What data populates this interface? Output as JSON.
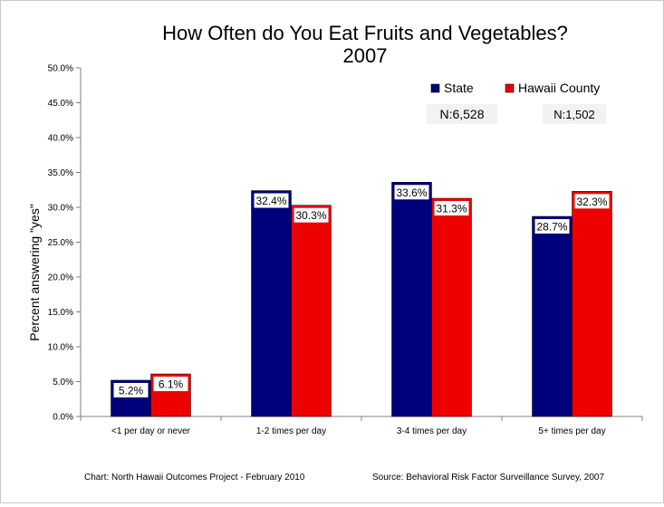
{
  "chart_data": {
    "type": "bar",
    "title_line1": "How Often do You Eat Fruits and Vegetables?",
    "title_line2": "2007",
    "ylabel": "Percent answering \"yes\"",
    "xlabel": "",
    "ylim": [
      0,
      50
    ],
    "ytick_labels": [
      "0.0%",
      "5.0%",
      "10.0%",
      "15.0%",
      "20.0%",
      "25.0%",
      "30.0%",
      "35.0%",
      "40.0%",
      "45.0%",
      "50.0%"
    ],
    "categories": [
      "<1 per day or never",
      "1-2 times per day",
      "3-4 times per day",
      "5+ times per day"
    ],
    "series": [
      {
        "name": "State",
        "values": [
          5.2,
          32.4,
          33.6,
          28.7
        ],
        "labels": [
          "5.2%",
          "32.4%",
          "33.6%",
          "28.7%"
        ],
        "color": "#00007a"
      },
      {
        "name": "Hawaii County",
        "values": [
          6.1,
          30.3,
          31.3,
          32.3
        ],
        "labels": [
          "6.1%",
          "30.3%",
          "31.3%",
          "32.3%"
        ],
        "color": "#ee0000"
      }
    ],
    "legend_position": "top-right",
    "grid": false,
    "sample_sizes": [
      "N:6,528",
      "N:1,502"
    ]
  },
  "footer": {
    "credit": "Chart:  North Hawaii Outcomes Project - February 2010",
    "source": "Source:  Behavioral Risk Factor Surveillance Survey, 2007"
  }
}
